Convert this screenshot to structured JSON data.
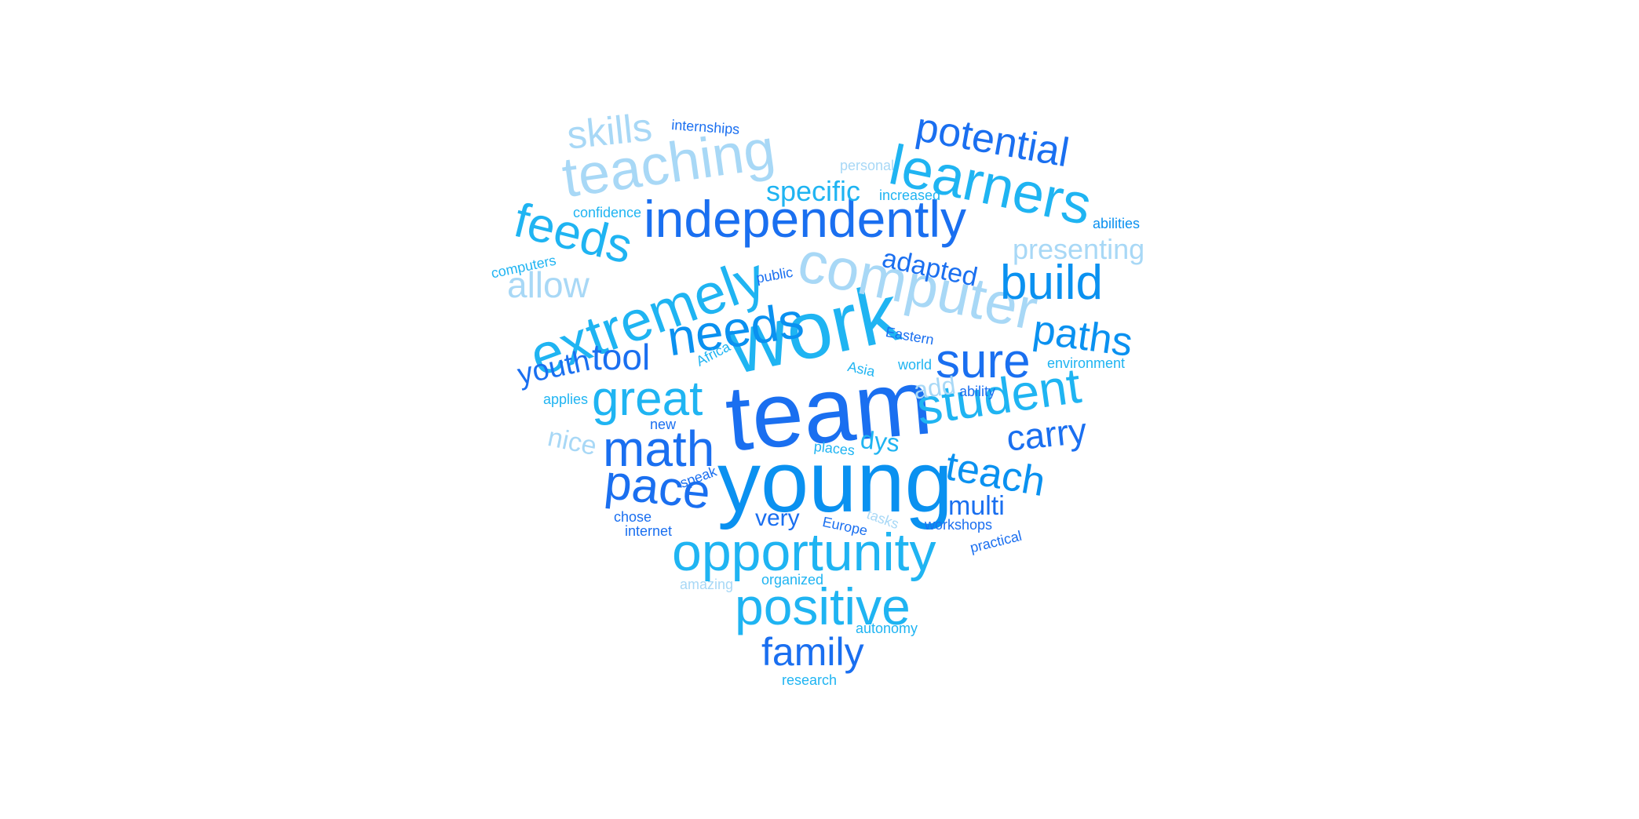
{
  "word_cloud": {
    "palette": {
      "c1": "#1a6ff0",
      "c2": "#0a91f0",
      "c3": "#1fb4f2",
      "c4": "#a8d8f6"
    },
    "words": [
      {
        "id": "work",
        "text": "work",
        "color": "c3"
      },
      {
        "id": "team",
        "text": "team",
        "color": "c1"
      },
      {
        "id": "young",
        "text": "young",
        "color": "c2"
      },
      {
        "id": "independently",
        "text": "independently",
        "color": "c1"
      },
      {
        "id": "computer",
        "text": "computer",
        "color": "c4"
      },
      {
        "id": "learners",
        "text": "learners",
        "color": "c3"
      },
      {
        "id": "teaching",
        "text": "teaching",
        "color": "c4"
      },
      {
        "id": "extremely",
        "text": "extremely",
        "color": "c3"
      },
      {
        "id": "opportunity",
        "text": "opportunity",
        "color": "c3"
      },
      {
        "id": "positive",
        "text": "positive",
        "color": "c3"
      },
      {
        "id": "math",
        "text": "math",
        "color": "c1"
      },
      {
        "id": "great",
        "text": "great",
        "color": "c3"
      },
      {
        "id": "student",
        "text": "student",
        "color": "c3"
      },
      {
        "id": "needs",
        "text": "needs",
        "color": "c2"
      },
      {
        "id": "build",
        "text": "build",
        "color": "c2"
      },
      {
        "id": "sure",
        "text": "sure",
        "color": "c1"
      },
      {
        "id": "pace",
        "text": "pace",
        "color": "c1"
      },
      {
        "id": "feeds",
        "text": "feeds",
        "color": "c3"
      },
      {
        "id": "potential",
        "text": "potential",
        "color": "c1"
      },
      {
        "id": "paths",
        "text": "paths",
        "color": "c2"
      },
      {
        "id": "teach",
        "text": "teach",
        "color": "c2"
      },
      {
        "id": "skills",
        "text": "skills",
        "color": "c4"
      },
      {
        "id": "family",
        "text": "family",
        "color": "c1"
      },
      {
        "id": "carry",
        "text": "carry",
        "color": "c1"
      },
      {
        "id": "allow",
        "text": "allow",
        "color": "c4"
      },
      {
        "id": "tool",
        "text": "tool",
        "color": "c1"
      },
      {
        "id": "youth",
        "text": "youth",
        "color": "c1"
      },
      {
        "id": "specific",
        "text": "specific",
        "color": "c3"
      },
      {
        "id": "presenting",
        "text": "presenting",
        "color": "c4"
      },
      {
        "id": "adapted",
        "text": "adapted",
        "color": "c1"
      },
      {
        "id": "multi",
        "text": "multi",
        "color": "c1"
      },
      {
        "id": "very",
        "text": "very",
        "color": "c1"
      },
      {
        "id": "nice",
        "text": "nice",
        "color": "c4"
      },
      {
        "id": "dys",
        "text": "dys",
        "color": "c3"
      },
      {
        "id": "add",
        "text": "add",
        "color": "c4"
      },
      {
        "id": "internships",
        "text": "internships",
        "color": "c1"
      },
      {
        "id": "personal",
        "text": "personal",
        "color": "c4"
      },
      {
        "id": "increased",
        "text": "increased",
        "color": "c3"
      },
      {
        "id": "confidence",
        "text": "confidence",
        "color": "c3"
      },
      {
        "id": "abilities",
        "text": "abilities",
        "color": "c2"
      },
      {
        "id": "computers",
        "text": "computers",
        "color": "c3"
      },
      {
        "id": "public",
        "text": "public",
        "color": "c1"
      },
      {
        "id": "eastern",
        "text": "Eastern",
        "color": "c1"
      },
      {
        "id": "africa",
        "text": "Africa",
        "color": "c3"
      },
      {
        "id": "asia",
        "text": "Asia",
        "color": "c3"
      },
      {
        "id": "world",
        "text": "world",
        "color": "c3"
      },
      {
        "id": "environment",
        "text": "environment",
        "color": "c3"
      },
      {
        "id": "applies",
        "text": "applies",
        "color": "c3"
      },
      {
        "id": "ability",
        "text": "ability",
        "color": "c1"
      },
      {
        "id": "new",
        "text": "new",
        "color": "c1"
      },
      {
        "id": "places",
        "text": "places",
        "color": "c3"
      },
      {
        "id": "speak",
        "text": "speak",
        "color": "c1"
      },
      {
        "id": "chose",
        "text": "chose",
        "color": "c1"
      },
      {
        "id": "internet",
        "text": "internet",
        "color": "c1"
      },
      {
        "id": "europe",
        "text": "Europe",
        "color": "c1"
      },
      {
        "id": "tasks",
        "text": "tasks",
        "color": "c4"
      },
      {
        "id": "workshops",
        "text": "workshops",
        "color": "c1"
      },
      {
        "id": "practical",
        "text": "practical",
        "color": "c1"
      },
      {
        "id": "amazing",
        "text": "amazing",
        "color": "c4"
      },
      {
        "id": "organized",
        "text": "organized",
        "color": "c3"
      },
      {
        "id": "autonomy",
        "text": "autonomy",
        "color": "c3"
      },
      {
        "id": "research",
        "text": "research",
        "color": "c3"
      }
    ]
  }
}
